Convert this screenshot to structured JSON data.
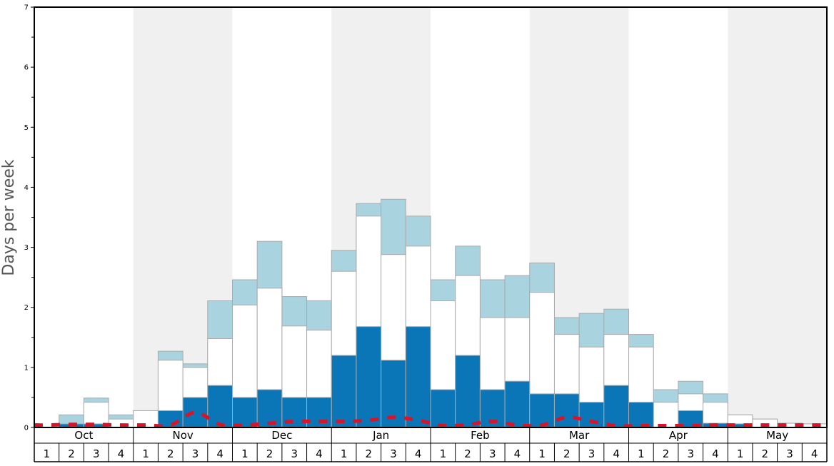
{
  "chart_data": {
    "type": "bar",
    "ylabel": "Days per week",
    "ylim": [
      0,
      7
    ],
    "y_ticks": [
      "0",
      "1",
      "2",
      "3",
      "4",
      "5",
      "6",
      "7"
    ],
    "months": [
      "Oct",
      "Nov",
      "Dec",
      "Jan",
      "Feb",
      "Mar",
      "Apr",
      "May"
    ],
    "week_labels": [
      "1",
      "2",
      "3",
      "4"
    ],
    "colors": {
      "dark": "#0a76b7",
      "mid": "#ffffff",
      "light": "#aad3e0",
      "dashed": "#d7142a",
      "shade": "#f0f0f0"
    },
    "series": [
      {
        "values": [
          0,
          0.06,
          0.06,
          0,
          0,
          0.28,
          0.5,
          0.7,
          0.5,
          0.63,
          0.5,
          0.5,
          1.2,
          1.68,
          1.12,
          1.68,
          0.63,
          1.2,
          0.63,
          0.77,
          0.56,
          0.56,
          0.42,
          0.7,
          0.42,
          0,
          0.28,
          0.07,
          0.06,
          0,
          0,
          0
        ]
      },
      {
        "values": [
          0,
          0.06,
          0.42,
          0.14,
          0.28,
          1.12,
          1.0,
          1.48,
          2.04,
          2.32,
          1.69,
          1.62,
          2.6,
          3.52,
          2.88,
          3.02,
          2.11,
          2.53,
          1.83,
          1.83,
          2.25,
          1.55,
          1.34,
          1.55,
          1.34,
          0.42,
          0.56,
          0.42,
          0.21,
          0.14,
          0.07,
          0.06
        ]
      },
      {
        "values": [
          0,
          0.21,
          0.49,
          0.21,
          0.28,
          1.27,
          1.06,
          2.11,
          2.46,
          3.1,
          2.18,
          2.11,
          2.95,
          3.73,
          3.8,
          3.52,
          2.46,
          3.02,
          2.46,
          2.53,
          2.74,
          1.83,
          1.9,
          1.97,
          1.55,
          0.63,
          0.77,
          0.56,
          0.21,
          0.14,
          0.07,
          0.06
        ]
      },
      {
        "type": "line",
        "values": [
          0.04,
          0.05,
          0.05,
          0.04,
          0.04,
          0.04,
          0.25,
          0.05,
          0.04,
          0.07,
          0.1,
          0.1,
          0.1,
          0.12,
          0.17,
          0.12,
          0.03,
          0.05,
          0.1,
          0.04,
          0.04,
          0.17,
          0.1,
          0.03,
          0.03,
          0.03,
          0.03,
          0.04,
          0.04,
          0.04,
          0.04,
          0.04
        ]
      }
    ]
  }
}
